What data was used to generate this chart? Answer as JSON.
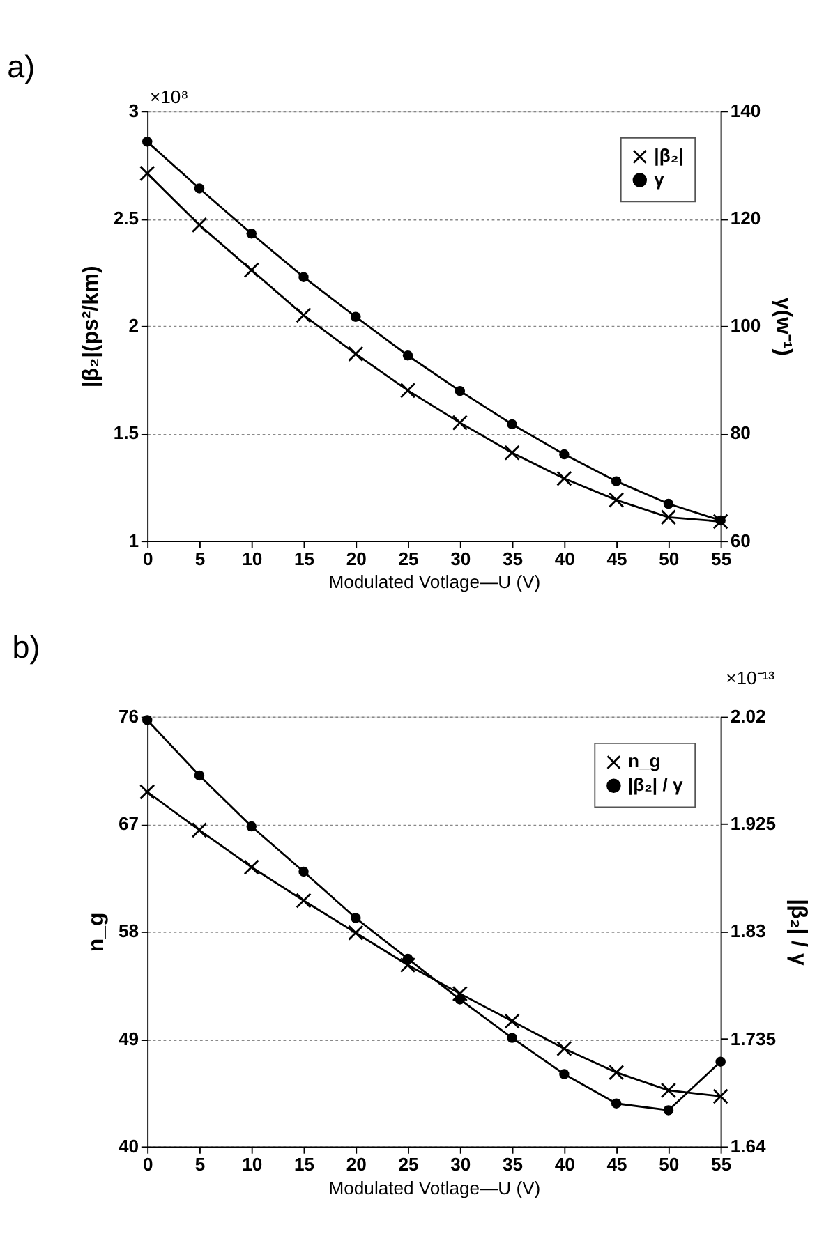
{
  "chart_data": [
    {
      "type": "line",
      "title": "a)",
      "xlabel": "Modulated Votlage—U (V)",
      "ylabel": "|β₂|(ps²/km)",
      "y2label": "γ(w⁻¹)",
      "annotations": [
        "×10⁸"
      ],
      "x": [
        0,
        5,
        10,
        15,
        20,
        25,
        30,
        35,
        40,
        45,
        50,
        55
      ],
      "series": [
        {
          "name": "|β₂|",
          "color": "#000000",
          "marker": "cross",
          "values": [
            2.71,
            2.47,
            2.26,
            2.05,
            1.87,
            1.7,
            1.55,
            1.41,
            1.29,
            1.19,
            1.11,
            1.09
          ]
        },
        {
          "name": "γ",
          "color": "#000000",
          "marker": "circle",
          "axis": "y2",
          "values": [
            134.3,
            125.6,
            117.2,
            109.1,
            101.7,
            94.5,
            87.9,
            81.7,
            76.1,
            71.1,
            66.9,
            63.8
          ]
        }
      ],
      "xlim": [
        0,
        55
      ],
      "xticks": [
        0,
        5,
        10,
        15,
        20,
        25,
        30,
        35,
        40,
        45,
        50,
        55
      ],
      "ylim": [
        1,
        3
      ],
      "yticks": [
        1,
        1.5,
        2,
        2.5,
        3
      ],
      "y2lim": [
        60,
        140
      ],
      "y2ticks": [
        60,
        80,
        100,
        120,
        140
      ],
      "grid": "y",
      "legend": "top right",
      "line_style": "solid"
    },
    {
      "type": "line",
      "title": "b)",
      "xlabel": "Modulated Votlage—U (V)",
      "ylabel": "n_g",
      "y2label": "|β₂| / γ",
      "annotations": [
        "×10⁻¹³"
      ],
      "x": [
        0,
        5,
        10,
        15,
        20,
        25,
        30,
        35,
        40,
        45,
        50,
        55
      ],
      "series": [
        {
          "name": "n_g",
          "color": "#000000",
          "marker": "cross",
          "values": [
            69.7,
            66.5,
            63.4,
            60.6,
            57.9,
            55.2,
            52.8,
            50.5,
            48.2,
            46.2,
            44.7,
            44.2
          ]
        },
        {
          "name": "|β₂| / γ",
          "color": "#000000",
          "marker": "circle",
          "axis": "y2",
          "values": [
            2.017,
            1.968,
            1.923,
            1.883,
            1.842,
            1.806,
            1.77,
            1.736,
            1.704,
            1.678,
            1.672,
            1.715
          ]
        }
      ],
      "xlim": [
        0,
        55
      ],
      "xticks": [
        0,
        5,
        10,
        15,
        20,
        25,
        30,
        35,
        40,
        45,
        50,
        55
      ],
      "ylim": [
        40,
        76
      ],
      "yticks": [
        40,
        49,
        58,
        67,
        76
      ],
      "y2lim": [
        1.64,
        2.02
      ],
      "y2ticks": [
        1.64,
        1.735,
        1.83,
        1.925,
        2.02
      ],
      "grid": "y",
      "legend": "top right",
      "line_style": "solid"
    }
  ]
}
